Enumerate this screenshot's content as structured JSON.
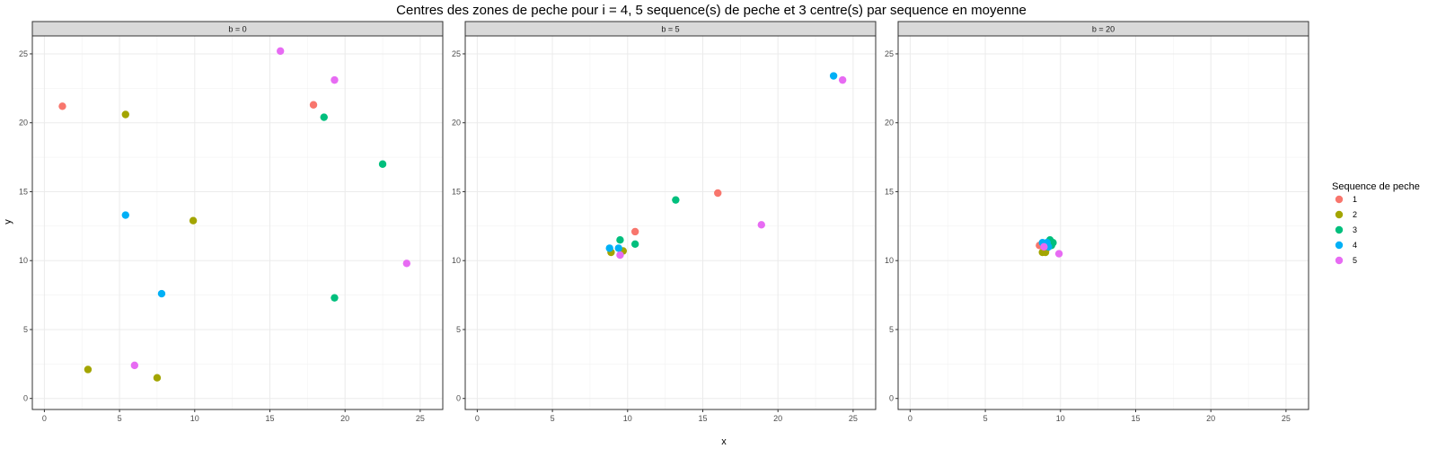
{
  "chart_data": {
    "type": "scatter",
    "title": "Centres des zones de peche pour i = 4, 5 sequence(s) de peche et 3 centre(s) par sequence en moyenne",
    "xlabel": "x",
    "ylabel": "y",
    "xlim": [
      -0.8,
      26.5
    ],
    "ylim": [
      -0.8,
      26.3
    ],
    "x_ticks": [
      0,
      5,
      10,
      15,
      20,
      25
    ],
    "y_ticks": [
      0,
      5,
      10,
      15,
      20,
      25
    ],
    "grid": true,
    "legend": {
      "title": "Sequence de peche",
      "placement": "right",
      "entries": [
        "1",
        "2",
        "3",
        "4",
        "5"
      ]
    },
    "colors": {
      "1": "#F8766D",
      "2": "#A3A500",
      "3": "#00BF7D",
      "4": "#00B0F6",
      "5": "#E76BF3"
    },
    "panels": [
      {
        "label": "b = 0",
        "points": [
          {
            "group": "1",
            "x": 1.2,
            "y": 21.2
          },
          {
            "group": "1",
            "x": 17.9,
            "y": 21.3
          },
          {
            "group": "2",
            "x": 5.4,
            "y": 20.6
          },
          {
            "group": "2",
            "x": 9.9,
            "y": 12.9
          },
          {
            "group": "2",
            "x": 2.9,
            "y": 2.1
          },
          {
            "group": "2",
            "x": 7.5,
            "y": 1.5
          },
          {
            "group": "3",
            "x": 18.6,
            "y": 20.4
          },
          {
            "group": "3",
            "x": 22.5,
            "y": 17.0
          },
          {
            "group": "3",
            "x": 19.3,
            "y": 7.3
          },
          {
            "group": "4",
            "x": 5.4,
            "y": 13.3
          },
          {
            "group": "4",
            "x": 7.8,
            "y": 7.6
          },
          {
            "group": "5",
            "x": 15.7,
            "y": 25.2
          },
          {
            "group": "5",
            "x": 19.3,
            "y": 23.1
          },
          {
            "group": "5",
            "x": 24.1,
            "y": 9.8
          },
          {
            "group": "5",
            "x": 6.0,
            "y": 2.4
          }
        ]
      },
      {
        "label": "b = 5",
        "points": [
          {
            "group": "1",
            "x": 16.0,
            "y": 14.9
          },
          {
            "group": "1",
            "x": 10.5,
            "y": 12.1
          },
          {
            "group": "2",
            "x": 9.7,
            "y": 10.7
          },
          {
            "group": "2",
            "x": 8.9,
            "y": 10.6
          },
          {
            "group": "3",
            "x": 13.2,
            "y": 14.4
          },
          {
            "group": "3",
            "x": 9.5,
            "y": 11.5
          },
          {
            "group": "3",
            "x": 10.5,
            "y": 11.2
          },
          {
            "group": "4",
            "x": 23.7,
            "y": 23.4
          },
          {
            "group": "4",
            "x": 8.8,
            "y": 10.9
          },
          {
            "group": "4",
            "x": 9.4,
            "y": 10.9
          },
          {
            "group": "5",
            "x": 24.3,
            "y": 23.1
          },
          {
            "group": "5",
            "x": 18.9,
            "y": 12.6
          },
          {
            "group": "5",
            "x": 9.5,
            "y": 10.4
          }
        ]
      },
      {
        "label": "b = 20",
        "points": [
          {
            "group": "1",
            "x": 8.6,
            "y": 11.1
          },
          {
            "group": "1",
            "x": 9.1,
            "y": 10.9
          },
          {
            "group": "2",
            "x": 8.8,
            "y": 10.6
          },
          {
            "group": "2",
            "x": 9.0,
            "y": 10.6
          },
          {
            "group": "3",
            "x": 9.3,
            "y": 11.5
          },
          {
            "group": "3",
            "x": 9.5,
            "y": 11.3
          },
          {
            "group": "3",
            "x": 9.4,
            "y": 11.1
          },
          {
            "group": "4",
            "x": 8.8,
            "y": 11.3
          },
          {
            "group": "4",
            "x": 9.1,
            "y": 11.3
          },
          {
            "group": "4",
            "x": 9.2,
            "y": 11.0
          },
          {
            "group": "5",
            "x": 9.9,
            "y": 10.5
          },
          {
            "group": "5",
            "x": 8.9,
            "y": 11.0
          }
        ]
      }
    ]
  }
}
